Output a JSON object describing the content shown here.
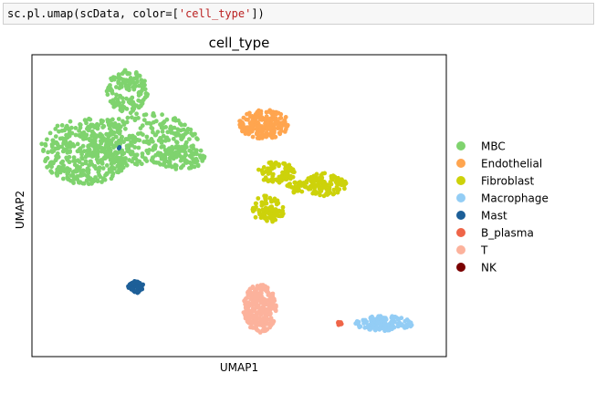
{
  "notebook": {
    "cell_code": {
      "prefix": "sc.pl.umap(scData, color=[",
      "string": "'cell_type'",
      "suffix": "])"
    }
  },
  "chart_data": {
    "type": "scatter",
    "title": "cell_type",
    "xlabel": "UMAP1",
    "ylabel": "UMAP2",
    "xlim": [
      0,
      100
    ],
    "ylim": [
      0,
      100
    ],
    "grid": false,
    "ticks_shown": false,
    "legend_placement": "right",
    "series": [
      {
        "name": "MBC",
        "color": "#7fd36e",
        "clusters": [
          {
            "cx": 13,
            "cy": 68,
            "rx": 11,
            "ry": 11,
            "n": 380
          },
          {
            "cx": 26,
            "cy": 72,
            "rx": 14,
            "ry": 9,
            "n": 300
          },
          {
            "cx": 23,
            "cy": 88,
            "rx": 5,
            "ry": 7,
            "n": 150
          },
          {
            "cx": 36,
            "cy": 66,
            "rx": 6,
            "ry": 4,
            "n": 90
          }
        ]
      },
      {
        "name": "Endothelial",
        "color": "#ffa54f",
        "clusters": [
          {
            "cx": 56,
            "cy": 77,
            "rx": 6,
            "ry": 5,
            "n": 200
          }
        ]
      },
      {
        "name": "Fibroblast",
        "color": "#cdd20a",
        "clusters": [
          {
            "cx": 59,
            "cy": 61,
            "rx": 4.5,
            "ry": 3.5,
            "n": 80
          },
          {
            "cx": 71,
            "cy": 57,
            "rx": 5,
            "ry": 4,
            "n": 110
          },
          {
            "cx": 57,
            "cy": 49,
            "rx": 4,
            "ry": 4.5,
            "n": 90
          },
          {
            "cx": 64,
            "cy": 56,
            "rx": 2.5,
            "ry": 2,
            "n": 30
          }
        ]
      },
      {
        "name": "Macrophage",
        "color": "#93cdf5",
        "clusters": [
          {
            "cx": 85,
            "cy": 11,
            "rx": 7,
            "ry": 2.5,
            "n": 140
          }
        ]
      },
      {
        "name": "Mast",
        "color": "#1d5f98",
        "clusters": [
          {
            "cx": 25,
            "cy": 23,
            "rx": 2,
            "ry": 2,
            "n": 45
          },
          {
            "cx": 21,
            "cy": 69,
            "rx": 0.6,
            "ry": 0.6,
            "n": 2
          }
        ]
      },
      {
        "name": "B_plasma",
        "color": "#ef6548",
        "clusters": [
          {
            "cx": 74,
            "cy": 11,
            "rx": 0.8,
            "ry": 0.6,
            "n": 12
          }
        ]
      },
      {
        "name": "T",
        "color": "#fcb29c",
        "clusters": [
          {
            "cx": 55,
            "cy": 16,
            "rx": 4,
            "ry": 8,
            "n": 280
          }
        ]
      },
      {
        "name": "NK",
        "color": "#7a0000",
        "clusters": []
      }
    ]
  }
}
